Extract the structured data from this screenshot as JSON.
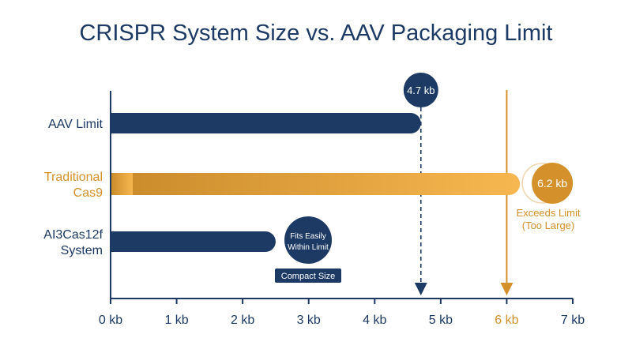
{
  "chart_data": {
    "type": "bar",
    "orientation": "horizontal",
    "title": "CRISPR System Size vs. AAV Packaging Limit",
    "categories": [
      [
        "AAV Limit"
      ],
      [
        "Traditional",
        "Cas9"
      ],
      [
        "AI3Cas12f",
        "System"
      ]
    ],
    "values": [
      4.7,
      6.2,
      2.5
    ],
    "bar_colors": [
      "#1c3a64",
      "#d4902a",
      "#1c3a64"
    ],
    "label_colors": [
      "#1c3a64",
      "#d4902a",
      "#1c3a64"
    ],
    "xlim": [
      0,
      7
    ],
    "xticks": [
      0,
      1,
      2,
      3,
      4,
      5,
      6,
      7
    ],
    "tick_unit": "kb",
    "highlight_tick": 6,
    "value_badges": [
      {
        "bar": 0,
        "text": "4.7 kb",
        "placement": "above-line"
      },
      {
        "bar": 1,
        "text": "6.2 kb",
        "placement": "bar-end"
      }
    ],
    "reference_lines": [
      {
        "x": 4.7,
        "style": "dashed",
        "color": "#1c3a64"
      },
      {
        "x": 6.0,
        "style": "solid",
        "color": "#d4902a"
      }
    ],
    "annotations": {
      "exceeds": {
        "lines": [
          "Exceeds Limit",
          "(Too Large)"
        ],
        "color": "#d4902a"
      },
      "fits": {
        "lines": [
          "Fits Easily",
          "Within Limit"
        ]
      },
      "compact": "Compact Size"
    },
    "grid": false,
    "legend": "none"
  },
  "colors": {
    "navy": "#1c3a64",
    "orange": "#d4902a",
    "orange_light": "#f7b750",
    "white": "#ffffff"
  }
}
